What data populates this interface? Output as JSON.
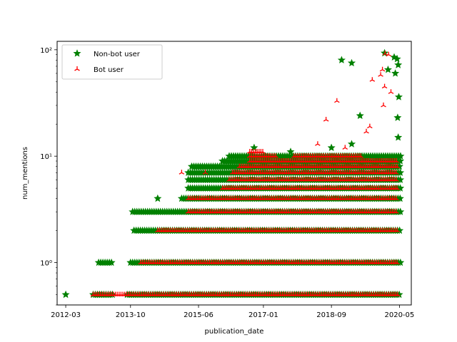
{
  "chart_data": {
    "type": "scatter",
    "title": "",
    "xlabel": "publication_date",
    "ylabel": "num_mentions",
    "yscale": "log",
    "xlim": [
      "2011-12-15",
      "2020-08-15"
    ],
    "ylim": [
      0.4,
      120
    ],
    "grid": false,
    "legend_position": "top-left",
    "x_ticks": [
      "2012-03",
      "2013-10",
      "2015-06",
      "2017-01",
      "2018-09",
      "2020-05"
    ],
    "y_ticks": [
      {
        "value": 1,
        "label": "10⁰"
      },
      {
        "value": 10,
        "label": "10¹"
      },
      {
        "value": 100,
        "label": "10²"
      }
    ],
    "series": [
      {
        "name": "Non-bot user",
        "color": "#008000",
        "marker": "star",
        "bands": [
          {
            "y": 0.5,
            "from": "2012-03-01",
            "to": "2012-03-20"
          },
          {
            "y": 0.5,
            "from": "2012-11-01",
            "to": "2013-05-01"
          },
          {
            "y": 0.5,
            "from": "2013-09-01",
            "to": "2020-05-15"
          },
          {
            "y": 1,
            "from": "2012-12-20",
            "to": "2013-05-01"
          },
          {
            "y": 1,
            "from": "2013-10-01",
            "to": "2020-05-15"
          },
          {
            "y": 2,
            "from": "2013-11-01",
            "to": "2020-05-15"
          },
          {
            "y": 3,
            "from": "2013-10-20",
            "to": "2020-05-15"
          },
          {
            "y": 4,
            "from": "2015-01-01",
            "to": "2020-05-15"
          },
          {
            "y": 5,
            "from": "2015-03-01",
            "to": "2020-05-15"
          },
          {
            "y": 6,
            "from": "2015-03-01",
            "to": "2020-05-15"
          },
          {
            "y": 7,
            "from": "2015-03-01",
            "to": "2020-05-15"
          },
          {
            "y": 8,
            "from": "2015-04-01",
            "to": "2020-05-15"
          },
          {
            "y": 9,
            "from": "2016-01-01",
            "to": "2020-05-15"
          },
          {
            "y": 10,
            "from": "2016-03-01",
            "to": "2020-05-15"
          }
        ],
        "points": [
          {
            "x": "2014-06-01",
            "y": 4
          },
          {
            "x": "2016-10-10",
            "y": 12
          },
          {
            "x": "2017-09-01",
            "y": 11
          },
          {
            "x": "2018-09-01",
            "y": 12
          },
          {
            "x": "2019-03-01",
            "y": 13
          },
          {
            "x": "2019-05-15",
            "y": 24
          },
          {
            "x": "2018-12-01",
            "y": 80
          },
          {
            "x": "2019-03-01",
            "y": 75
          },
          {
            "x": "2019-12-20",
            "y": 93
          },
          {
            "x": "2020-01-20",
            "y": 65
          },
          {
            "x": "2020-03-15",
            "y": 85
          },
          {
            "x": "2020-04-10",
            "y": 82
          },
          {
            "x": "2020-04-20",
            "y": 72
          },
          {
            "x": "2020-04-15",
            "y": 23
          },
          {
            "x": "2020-04-25",
            "y": 36
          },
          {
            "x": "2020-04-20",
            "y": 15
          },
          {
            "x": "2020-03-25",
            "y": 60
          }
        ]
      },
      {
        "name": "Bot user",
        "color": "#ff0000",
        "marker": "tri_up",
        "bands": [
          {
            "y": 0.5,
            "from": "2012-11-01",
            "to": "2020-04-15"
          },
          {
            "y": 1,
            "from": "2014-01-01",
            "to": "2020-04-15"
          },
          {
            "y": 2,
            "from": "2014-06-01",
            "to": "2020-04-15"
          },
          {
            "y": 3,
            "from": "2015-03-01",
            "to": "2020-04-15"
          },
          {
            "y": 4,
            "from": "2015-03-01",
            "to": "2020-04-15"
          },
          {
            "y": 5,
            "from": "2016-01-01",
            "to": "2020-04-15"
          },
          {
            "y": 6,
            "from": "2016-03-01",
            "to": "2020-04-15"
          },
          {
            "y": 7,
            "from": "2016-04-01",
            "to": "2020-04-15"
          },
          {
            "y": 8,
            "from": "2016-06-01",
            "to": "2020-04-15"
          },
          {
            "y": 9,
            "from": "2016-09-01",
            "to": "2020-04-15"
          },
          {
            "y": 10,
            "from": "2016-09-01",
            "to": "2017-05-01"
          },
          {
            "y": 10,
            "from": "2017-10-01",
            "to": "2019-06-01"
          },
          {
            "y": 11,
            "from": "2016-09-01",
            "to": "2017-01-01"
          }
        ],
        "points": [
          {
            "x": "2015-01-01",
            "y": 7
          },
          {
            "x": "2015-08-01",
            "y": 7
          },
          {
            "x": "2018-05-01",
            "y": 13
          },
          {
            "x": "2018-07-15",
            "y": 22
          },
          {
            "x": "2018-10-20",
            "y": 33
          },
          {
            "x": "2019-01-01",
            "y": 12
          },
          {
            "x": "2019-07-10",
            "y": 17
          },
          {
            "x": "2019-08-10",
            "y": 19
          },
          {
            "x": "2019-09-01",
            "y": 52
          },
          {
            "x": "2019-11-15",
            "y": 58
          },
          {
            "x": "2019-12-01",
            "y": 65
          },
          {
            "x": "2019-12-10",
            "y": 30
          },
          {
            "x": "2019-12-20",
            "y": 45
          },
          {
            "x": "2019-12-25",
            "y": 92
          },
          {
            "x": "2020-01-25",
            "y": 90
          },
          {
            "x": "2020-02-15",
            "y": 40
          }
        ]
      }
    ]
  }
}
